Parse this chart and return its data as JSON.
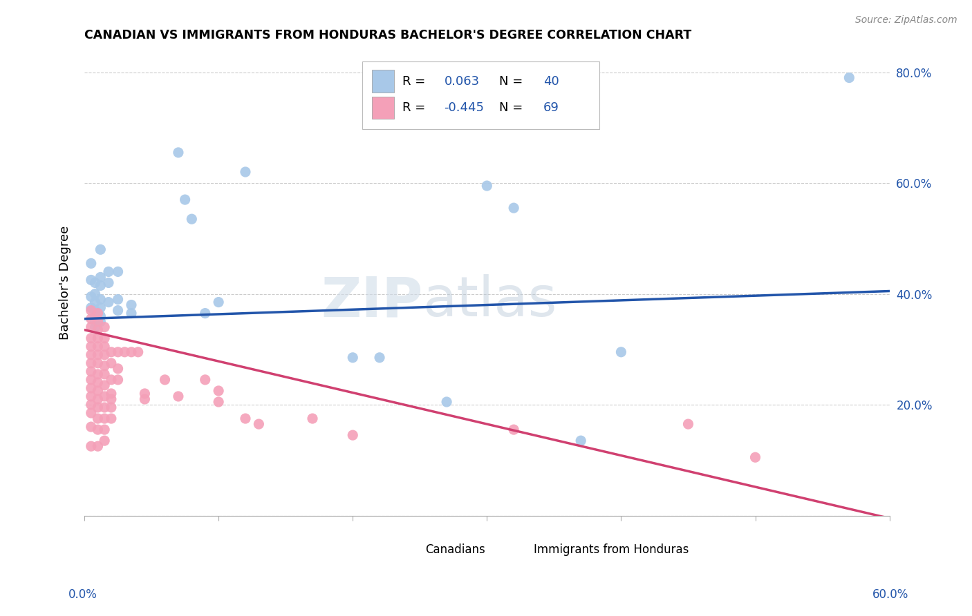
{
  "title": "CANADIAN VS IMMIGRANTS FROM HONDURAS BACHELOR'S DEGREE CORRELATION CHART",
  "source": "Source: ZipAtlas.com",
  "ylabel": "Bachelor's Degree",
  "watermark": "ZIPatlas",
  "canadian_color": "#a8c8e8",
  "honduran_color": "#f4a0b8",
  "trend_canadian_color": "#2255aa",
  "trend_honduran_color": "#d04070",
  "background_color": "#ffffff",
  "grid_color": "#cccccc",
  "xlim": [
    0.0,
    0.6
  ],
  "ylim": [
    0.0,
    0.84
  ],
  "canadian_trend_x0": 0.0,
  "canadian_trend_y0": 0.355,
  "canadian_trend_x1": 0.6,
  "canadian_trend_y1": 0.405,
  "honduran_trend_x0": 0.0,
  "honduran_trend_y0": 0.335,
  "honduran_trend_x1": 0.6,
  "honduran_trend_y1": -0.005,
  "canadian_points": [
    [
      0.005,
      0.455
    ],
    [
      0.005,
      0.425
    ],
    [
      0.005,
      0.395
    ],
    [
      0.005,
      0.375
    ],
    [
      0.008,
      0.42
    ],
    [
      0.008,
      0.4
    ],
    [
      0.008,
      0.385
    ],
    [
      0.008,
      0.37
    ],
    [
      0.008,
      0.36
    ],
    [
      0.008,
      0.35
    ],
    [
      0.008,
      0.34
    ],
    [
      0.012,
      0.48
    ],
    [
      0.012,
      0.43
    ],
    [
      0.012,
      0.415
    ],
    [
      0.012,
      0.39
    ],
    [
      0.012,
      0.375
    ],
    [
      0.012,
      0.36
    ],
    [
      0.012,
      0.35
    ],
    [
      0.018,
      0.44
    ],
    [
      0.018,
      0.42
    ],
    [
      0.018,
      0.385
    ],
    [
      0.025,
      0.44
    ],
    [
      0.025,
      0.39
    ],
    [
      0.025,
      0.37
    ],
    [
      0.035,
      0.38
    ],
    [
      0.035,
      0.365
    ],
    [
      0.07,
      0.655
    ],
    [
      0.075,
      0.57
    ],
    [
      0.08,
      0.535
    ],
    [
      0.09,
      0.365
    ],
    [
      0.1,
      0.385
    ],
    [
      0.12,
      0.62
    ],
    [
      0.2,
      0.285
    ],
    [
      0.22,
      0.285
    ],
    [
      0.27,
      0.205
    ],
    [
      0.3,
      0.595
    ],
    [
      0.32,
      0.555
    ],
    [
      0.37,
      0.135
    ],
    [
      0.4,
      0.295
    ],
    [
      0.57,
      0.79
    ]
  ],
  "honduran_points": [
    [
      0.005,
      0.37
    ],
    [
      0.005,
      0.355
    ],
    [
      0.005,
      0.34
    ],
    [
      0.005,
      0.32
    ],
    [
      0.005,
      0.305
    ],
    [
      0.005,
      0.29
    ],
    [
      0.005,
      0.275
    ],
    [
      0.005,
      0.26
    ],
    [
      0.005,
      0.245
    ],
    [
      0.005,
      0.23
    ],
    [
      0.005,
      0.215
    ],
    [
      0.005,
      0.2
    ],
    [
      0.005,
      0.185
    ],
    [
      0.005,
      0.16
    ],
    [
      0.005,
      0.125
    ],
    [
      0.01,
      0.365
    ],
    [
      0.01,
      0.35
    ],
    [
      0.01,
      0.335
    ],
    [
      0.01,
      0.32
    ],
    [
      0.01,
      0.305
    ],
    [
      0.01,
      0.29
    ],
    [
      0.01,
      0.275
    ],
    [
      0.01,
      0.255
    ],
    [
      0.01,
      0.24
    ],
    [
      0.01,
      0.225
    ],
    [
      0.01,
      0.21
    ],
    [
      0.01,
      0.195
    ],
    [
      0.01,
      0.175
    ],
    [
      0.01,
      0.155
    ],
    [
      0.01,
      0.125
    ],
    [
      0.015,
      0.34
    ],
    [
      0.015,
      0.32
    ],
    [
      0.015,
      0.305
    ],
    [
      0.015,
      0.29
    ],
    [
      0.015,
      0.27
    ],
    [
      0.015,
      0.255
    ],
    [
      0.015,
      0.235
    ],
    [
      0.015,
      0.215
    ],
    [
      0.015,
      0.195
    ],
    [
      0.015,
      0.175
    ],
    [
      0.015,
      0.155
    ],
    [
      0.015,
      0.135
    ],
    [
      0.02,
      0.295
    ],
    [
      0.02,
      0.275
    ],
    [
      0.02,
      0.245
    ],
    [
      0.02,
      0.22
    ],
    [
      0.02,
      0.21
    ],
    [
      0.02,
      0.195
    ],
    [
      0.02,
      0.175
    ],
    [
      0.025,
      0.295
    ],
    [
      0.025,
      0.265
    ],
    [
      0.025,
      0.245
    ],
    [
      0.03,
      0.295
    ],
    [
      0.035,
      0.295
    ],
    [
      0.04,
      0.295
    ],
    [
      0.045,
      0.22
    ],
    [
      0.045,
      0.21
    ],
    [
      0.06,
      0.245
    ],
    [
      0.07,
      0.215
    ],
    [
      0.09,
      0.245
    ],
    [
      0.1,
      0.225
    ],
    [
      0.1,
      0.205
    ],
    [
      0.12,
      0.175
    ],
    [
      0.13,
      0.165
    ],
    [
      0.17,
      0.175
    ],
    [
      0.2,
      0.145
    ],
    [
      0.32,
      0.155
    ],
    [
      0.45,
      0.165
    ],
    [
      0.5,
      0.105
    ]
  ],
  "canadian_R": 0.063,
  "honduran_R": -0.445,
  "canadian_N": 40,
  "honduran_N": 69
}
